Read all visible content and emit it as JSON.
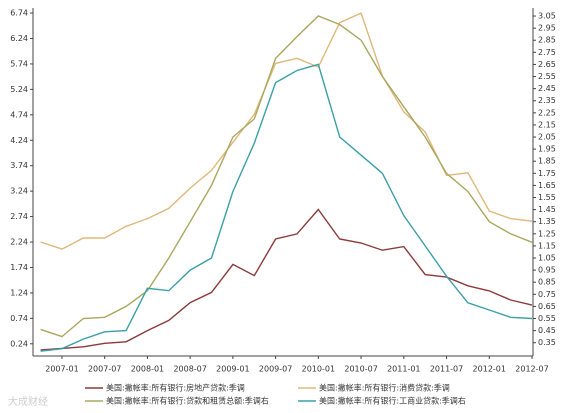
{
  "chart_data": {
    "type": "line",
    "categories": [
      null,
      "2007-01",
      null,
      "2007-07",
      null,
      "2008-01",
      null,
      "2008-07",
      null,
      "2009-01",
      null,
      "2009-07",
      null,
      "2010-01",
      null,
      "2010-07",
      null,
      "2011-01",
      null,
      "2011-07",
      null,
      "2012-01",
      null,
      "2012-07"
    ],
    "series": [
      {
        "name": "美国:撇帐率:所有银行:房地产贷款:季调",
        "color": "#8b3a3a",
        "values": [
          0.12,
          0.15,
          0.18,
          0.25,
          0.28,
          0.5,
          0.7,
          1.05,
          1.25,
          1.8,
          1.58,
          2.3,
          2.4,
          2.88,
          2.3,
          2.22,
          2.08,
          2.15,
          1.6,
          1.55,
          1.38,
          1.28,
          1.1,
          1.0
        ]
      },
      {
        "name": "美国:撇帐率:所有银行:消费贷款:季调",
        "color": "#e0b87a",
        "values": [
          2.24,
          2.1,
          2.32,
          2.32,
          2.55,
          2.7,
          2.9,
          3.3,
          3.65,
          4.2,
          4.75,
          5.75,
          5.85,
          5.68,
          6.55,
          6.74,
          5.5,
          4.8,
          4.4,
          3.55,
          3.6,
          2.85,
          2.7,
          2.65
        ]
      },
      {
        "name": "美国:撇帐率:所有银行:贷款和租赁总额:季调右",
        "color": "#a8a860",
        "axis": "y2",
        "values": [
          0.46,
          0.4,
          0.55,
          0.56,
          0.65,
          0.78,
          1.05,
          1.35,
          1.65,
          2.05,
          2.2,
          2.7,
          2.88,
          3.05,
          2.98,
          2.85,
          2.55,
          2.3,
          2.05,
          1.75,
          1.6,
          1.35,
          1.25,
          1.18
        ]
      },
      {
        "name": "美国:撇帐率:所有银行:工商业贷款:季调右",
        "color": "#3aa0a8",
        "axis": "y2",
        "values": [
          0.28,
          0.3,
          0.38,
          0.44,
          0.45,
          0.8,
          0.78,
          0.95,
          1.05,
          1.6,
          2.0,
          2.5,
          2.6,
          2.65,
          2.05,
          1.9,
          1.75,
          1.4,
          1.15,
          0.9,
          0.68,
          0.62,
          0.56,
          0.55
        ]
      }
    ],
    "ylim": [
      0,
      6.8
    ],
    "yticks": [
      0.24,
      0.74,
      1.24,
      1.74,
      2.24,
      2.74,
      3.24,
      3.74,
      4.24,
      4.74,
      5.24,
      5.74,
      6.24,
      6.74
    ],
    "y2lim": [
      0.24,
      3.1
    ],
    "y2ticks": [
      0.35,
      0.45,
      0.55,
      0.65,
      0.75,
      0.85,
      0.95,
      1.05,
      1.15,
      1.25,
      1.35,
      1.45,
      1.55,
      1.65,
      1.75,
      1.85,
      1.95,
      2.05,
      2.15,
      2.25,
      2.35,
      2.45,
      2.55,
      2.65,
      2.75,
      2.85,
      2.95,
      3.05
    ],
    "grid": false,
    "legend": "bottom",
    "watermark": "大成财经"
  }
}
